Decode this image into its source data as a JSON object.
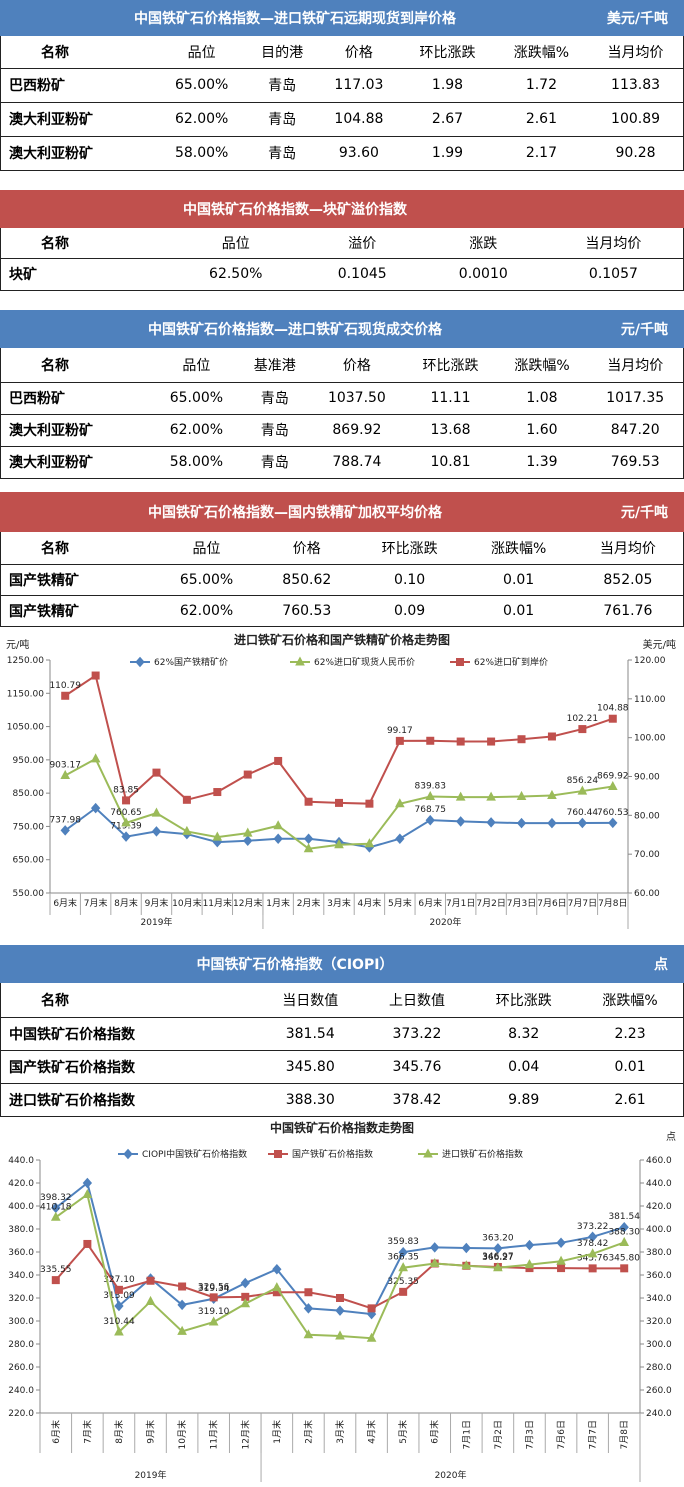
{
  "tables": [
    {
      "title": "中国铁矿石价格指数—进口铁矿石远期现货到岸价格",
      "unit": "美元/千吨",
      "color": "blue",
      "header": [
        "名称",
        "品位",
        "目的港",
        "价格",
        "环比涨跌",
        "涨跌幅%",
        "当月均价"
      ],
      "rows": [
        [
          "巴西粉矿",
          "65.00%",
          "青岛",
          "117.03",
          "1.98",
          "1.72",
          "113.83"
        ],
        [
          "澳大利亚粉矿",
          "62.00%",
          "青岛",
          "104.88",
          "2.67",
          "2.61",
          "100.89"
        ],
        [
          "澳大利亚粉矿",
          "58.00%",
          "青岛",
          "93.60",
          "1.99",
          "2.17",
          "90.28"
        ]
      ]
    },
    {
      "title": "中国铁矿石价格指数—块矿溢价指数",
      "color": "red",
      "header": [
        "名称",
        "品位",
        "溢价",
        "涨跌",
        "当月均价"
      ],
      "rows": [
        [
          "块矿",
          "62.50%",
          "0.1045",
          "0.0010",
          "0.1057"
        ]
      ]
    },
    {
      "title": "中国铁矿石价格指数—进口铁矿石现货成交价格",
      "unit": "元/千吨",
      "color": "blue",
      "header": [
        "名称",
        "品位",
        "基准港",
        "价格",
        "环比涨跌",
        "涨跌幅%",
        "当月均价"
      ],
      "rows": [
        [
          "巴西粉矿",
          "65.00%",
          "青岛",
          "1037.50",
          "11.11",
          "1.08",
          "1017.35"
        ],
        [
          "澳大利亚粉矿",
          "62.00%",
          "青岛",
          "869.92",
          "13.68",
          "1.60",
          "847.20"
        ],
        [
          "澳大利亚粉矿",
          "58.00%",
          "青岛",
          "788.74",
          "10.81",
          "1.39",
          "769.53"
        ]
      ]
    },
    {
      "title": "中国铁矿石价格指数—国内铁精矿加权平均价格",
      "unit": "元/千吨",
      "color": "red",
      "header": [
        "名称",
        "品位",
        "价格",
        "环比涨跌",
        "涨跌幅%",
        "当月均价"
      ],
      "rows": [
        [
          "国产铁精矿",
          "65.00%",
          "850.62",
          "0.10",
          "0.01",
          "852.05"
        ],
        [
          "国产铁精矿",
          "62.00%",
          "760.53",
          "0.09",
          "0.01",
          "761.76"
        ]
      ]
    },
    {
      "title": "中国铁矿石价格指数（CIOPI）",
      "unit": "点",
      "color": "blue",
      "header": [
        "名称",
        "当日数值",
        "上日数值",
        "环比涨跌",
        "涨跌幅%"
      ],
      "rows": [
        [
          "中国铁矿石价格指数",
          "381.54",
          "373.22",
          "8.32",
          "2.23"
        ],
        [
          "国产铁矿石价格指数",
          "345.80",
          "345.76",
          "0.04",
          "0.01"
        ],
        [
          "进口铁矿石价格指数",
          "388.30",
          "378.42",
          "9.89",
          "2.61"
        ]
      ]
    }
  ],
  "chart_data": [
    {
      "type": "line",
      "title": "进口铁矿石价格和国产铁精矿价格走势图",
      "y_label": "元/吨",
      "y2_label": "美元/吨",
      "categories": [
        "6月末",
        "7月末",
        "8月末",
        "9月末",
        "10月末",
        "11月末",
        "12月末",
        "1月末",
        "2月末",
        "3月末",
        "4月末",
        "5月末",
        "6月末",
        "7月1日",
        "7月2日",
        "7月3日",
        "7月6日",
        "7月7日",
        "7月8日"
      ],
      "x_groups": [
        {
          "name": "2019年",
          "size": 7
        },
        {
          "name": "2020年",
          "size": 12
        }
      ],
      "ylim": [
        550,
        1250
      ],
      "yticks": [
        {
          "value": 550,
          "label": "550.00"
        },
        {
          "value": 650,
          "label": "650.00"
        },
        {
          "value": 750,
          "label": "750.00"
        },
        {
          "value": 850,
          "label": "850.00"
        },
        {
          "value": 950,
          "label": "950.00"
        },
        {
          "value": 1050,
          "label": "1050.00"
        },
        {
          "value": 1150,
          "label": "1150.00"
        },
        {
          "value": 1250,
          "label": "1250.00"
        }
      ],
      "y2lim": [
        60,
        120
      ],
      "y2ticks": [
        {
          "value": 60,
          "label": "60.00"
        },
        {
          "value": 70,
          "label": "70.00"
        },
        {
          "value": 80,
          "label": "80.00"
        },
        {
          "value": 90,
          "label": "90.00"
        },
        {
          "value": 100,
          "label": "100.00"
        },
        {
          "value": 110,
          "label": "110.00"
        },
        {
          "value": 120,
          "label": "120.00"
        }
      ],
      "rotate_labels": false,
      "series": [
        {
          "name": "62%国产铁精矿价",
          "color": "#4f81bd",
          "marker": "diamond",
          "values": [
            737.98,
            805,
            719.39,
            735,
            727,
            703,
            707,
            713,
            713,
            703,
            687,
            713,
            768.75,
            765,
            762,
            760,
            760,
            760.44,
            760.53
          ],
          "value_labels": [
            "737.98",
            null,
            "719.39",
            null,
            null,
            null,
            null,
            null,
            null,
            null,
            null,
            null,
            "768.75",
            null,
            null,
            null,
            null,
            "760.44",
            "760.53"
          ]
        },
        {
          "name": "62%进口矿现货人民币价",
          "color": "#9bbb59",
          "marker": "triangle",
          "values": [
            903.17,
            953,
            760.65,
            790,
            735,
            718,
            730,
            752,
            683,
            695,
            698,
            818,
            839.83,
            838,
            838,
            840,
            843,
            856.24,
            869.92
          ],
          "value_labels": [
            "903.17",
            null,
            "760.65",
            null,
            null,
            null,
            null,
            null,
            null,
            null,
            null,
            null,
            "839.83",
            null,
            null,
            null,
            null,
            "856.24",
            "869.92"
          ]
        },
        {
          "name": "62%进口矿到岸价",
          "color": "#c0504d",
          "marker": "square",
          "axis": "y2",
          "values": [
            110.79,
            116,
            83.85,
            91,
            84,
            86,
            90.5,
            94,
            83.5,
            83.2,
            83,
            99.17,
            99.2,
            99,
            99,
            99.6,
            100.3,
            102.21,
            104.88
          ],
          "value_labels": [
            "110.79",
            null,
            "83.85",
            null,
            null,
            null,
            null,
            null,
            null,
            null,
            null,
            "99.17",
            null,
            null,
            null,
            null,
            null,
            "102.21",
            "104.88"
          ]
        }
      ]
    },
    {
      "type": "line",
      "title": "中国铁矿石价格指数走势图",
      "y2_label": "点",
      "categories": [
        "6月末",
        "7月末",
        "8月末",
        "9月末",
        "10月末",
        "11月末",
        "12月末",
        "1月末",
        "2月末",
        "3月末",
        "4月末",
        "5月末",
        "6月末",
        "7月1日",
        "7月2日",
        "7月3日",
        "7月6日",
        "7月7日",
        "7月8日"
      ],
      "x_groups": [
        {
          "name": "2019年",
          "size": 7
        },
        {
          "name": "2020年",
          "size": 12
        }
      ],
      "ylim": [
        220,
        440
      ],
      "yticks": [
        {
          "value": 220,
          "label": "220.0"
        },
        {
          "value": 240,
          "label": "240.0"
        },
        {
          "value": 260,
          "label": "260.0"
        },
        {
          "value": 280,
          "label": "280.0"
        },
        {
          "value": 300,
          "label": "300.0"
        },
        {
          "value": 320,
          "label": "320.0"
        },
        {
          "value": 340,
          "label": "340.0"
        },
        {
          "value": 360,
          "label": "360.0"
        },
        {
          "value": 380,
          "label": "380.0"
        },
        {
          "value": 400,
          "label": "400.0"
        },
        {
          "value": 420,
          "label": "420.0"
        },
        {
          "value": 440,
          "label": "440.0"
        }
      ],
      "y2lim": [
        240,
        460
      ],
      "y2ticks": [
        {
          "value": 240,
          "label": "240.0"
        },
        {
          "value": 260,
          "label": "260.0"
        },
        {
          "value": 280,
          "label": "280.0"
        },
        {
          "value": 300,
          "label": "300.0"
        },
        {
          "value": 320,
          "label": "320.0"
        },
        {
          "value": 340,
          "label": "340.0"
        },
        {
          "value": 360,
          "label": "360.0"
        },
        {
          "value": 380,
          "label": "380.0"
        },
        {
          "value": 400,
          "label": "400.0"
        },
        {
          "value": 420,
          "label": "420.0"
        },
        {
          "value": 440,
          "label": "440.0"
        },
        {
          "value": 460,
          "label": "460.0"
        }
      ],
      "rotate_labels": true,
      "series": [
        {
          "name": "CIOPI中国铁矿石价格指数",
          "color": "#4f81bd",
          "marker": "diamond",
          "values": [
            398.32,
            420,
            313.09,
            337,
            314,
            319.34,
            333,
            345,
            311,
            309,
            306,
            359.83,
            364,
            363.5,
            363.2,
            366,
            368,
            373.22,
            381.54
          ],
          "value_labels": [
            "398.32",
            null,
            "313.09",
            null,
            null,
            "319.34",
            null,
            null,
            null,
            null,
            null,
            "359.83",
            null,
            null,
            "363.20",
            null,
            null,
            "373.22",
            "381.54"
          ]
        },
        {
          "name": "国产铁矿石价格指数",
          "color": "#c0504d",
          "marker": "square",
          "values": [
            335.55,
            367,
            327.1,
            335,
            330,
            320.56,
            321,
            325,
            325,
            320,
            311,
            325.35,
            350,
            348,
            346.97,
            346,
            346,
            345.76,
            345.8
          ],
          "value_labels": [
            "335.55",
            null,
            "327.10",
            null,
            null,
            "320.56",
            null,
            null,
            null,
            null,
            null,
            "325.35",
            null,
            null,
            "346.97",
            null,
            null,
            "345.76",
            "345.80"
          ]
        },
        {
          "name": "进口铁矿石价格指数",
          "color": "#9bbb59",
          "marker": "triangle",
          "axis": "y2",
          "values": [
            410.18,
            430,
            310.44,
            337,
            311,
            319.1,
            335,
            349,
            308,
            307,
            305,
            366.35,
            370,
            368,
            366.27,
            369,
            372,
            378.42,
            388.3
          ],
          "value_labels": [
            "410.18",
            null,
            "310.44",
            null,
            null,
            "319.10",
            null,
            null,
            null,
            null,
            null,
            "366.35",
            null,
            null,
            "366.27",
            null,
            null,
            "378.42",
            "388.30"
          ]
        }
      ]
    }
  ]
}
